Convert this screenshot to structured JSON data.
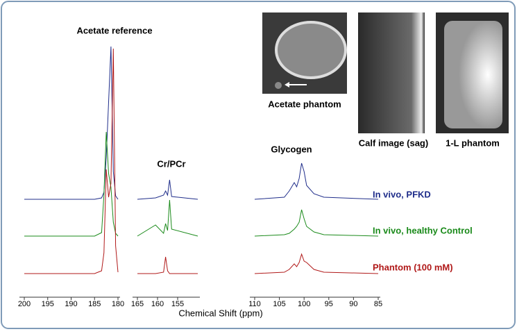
{
  "chart_data": {
    "type": "line",
    "x_label": "Chemical Shift (ppm)",
    "annotations": [
      "Acetate reference",
      "Cr/PCr",
      "Glycogen"
    ],
    "xlim": [
      [
        200,
        180
      ],
      [
        165,
        150
      ],
      [
        110,
        85
      ]
    ],
    "xticks": [
      200,
      195,
      190,
      185,
      180,
      165,
      160,
      155,
      110,
      105,
      100,
      95,
      90,
      85
    ],
    "x": [
      200,
      185,
      183.5,
      183,
      182.5,
      182,
      181.5,
      181,
      180.5,
      180,
      172,
      165,
      160.5,
      158.5,
      158,
      157.5,
      157,
      156.5,
      150,
      130,
      110,
      104,
      103,
      102,
      101.5,
      101,
      100.5,
      100,
      99.5,
      98,
      96,
      85
    ],
    "series": [
      {
        "name": "In vivo, PFKD",
        "color": "#1f2d8a",
        "values": [
          0,
          0,
          2,
          10,
          60,
          140,
          220,
          40,
          5,
          0,
          null,
          0,
          2,
          6,
          12,
          6,
          28,
          4,
          0,
          null,
          0,
          3,
          12,
          24,
          18,
          30,
          52,
          40,
          20,
          8,
          3,
          0
        ]
      },
      {
        "name": "In vivo, healthy Control",
        "color": "#1a8a1a",
        "values": [
          0,
          0,
          5,
          60,
          150,
          90,
          70,
          20,
          4,
          0,
          null,
          0,
          16,
          4,
          18,
          8,
          52,
          10,
          0,
          null,
          0,
          2,
          4,
          10,
          14,
          20,
          38,
          25,
          14,
          6,
          2,
          0
        ]
      },
      {
        "name": "Phantom (100 mM)",
        "color": "#b01818",
        "values": [
          0,
          0,
          4,
          30,
          150,
          110,
          130,
          324,
          40,
          2,
          null,
          0,
          0,
          2,
          24,
          4,
          0,
          0,
          0,
          null,
          0,
          2,
          6,
          14,
          10,
          16,
          28,
          18,
          16,
          6,
          2,
          0
        ]
      }
    ]
  },
  "images": [
    {
      "caption": "Acetate phantom"
    },
    {
      "caption": "Calf image (sag)"
    },
    {
      "caption": "1-L phantom"
    }
  ]
}
